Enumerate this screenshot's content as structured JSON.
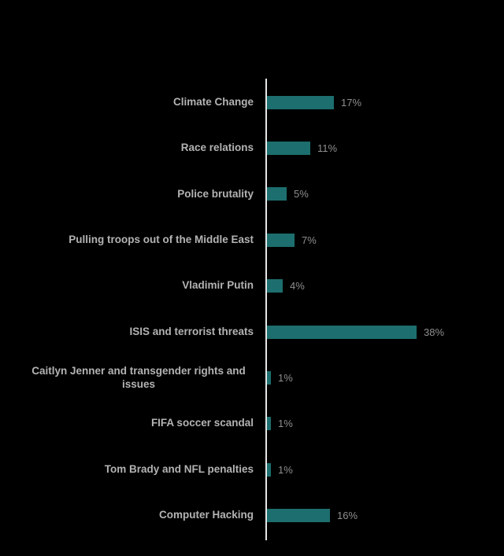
{
  "chart_data": {
    "type": "bar",
    "orientation": "horizontal",
    "title": "",
    "categories": [
      "Climate Change",
      "Race relations",
      "Police brutality",
      "Pulling troops out of the Middle East",
      "Vladimir Putin",
      "ISIS and terrorist threats",
      "Caitlyn Jenner and transgender rights and issues",
      "FIFA soccer scandal",
      "Tom Brady and NFL penalties",
      "Computer Hacking"
    ],
    "values": [
      17,
      11,
      5,
      7,
      4,
      38,
      1,
      1,
      1,
      16
    ],
    "value_labels": [
      "17%",
      "11%",
      "5%",
      "7%",
      "4%",
      "38%",
      "1%",
      "1%",
      "1%",
      "16%"
    ],
    "xlim": [
      0,
      58
    ],
    "grid": false,
    "legend": false,
    "colors": {
      "background": "#000000",
      "bar": "#1d6e6e",
      "category_label": "#b3b3b3",
      "value_label": "#8f8f8f",
      "axis_line": "#e6e6e6"
    }
  }
}
